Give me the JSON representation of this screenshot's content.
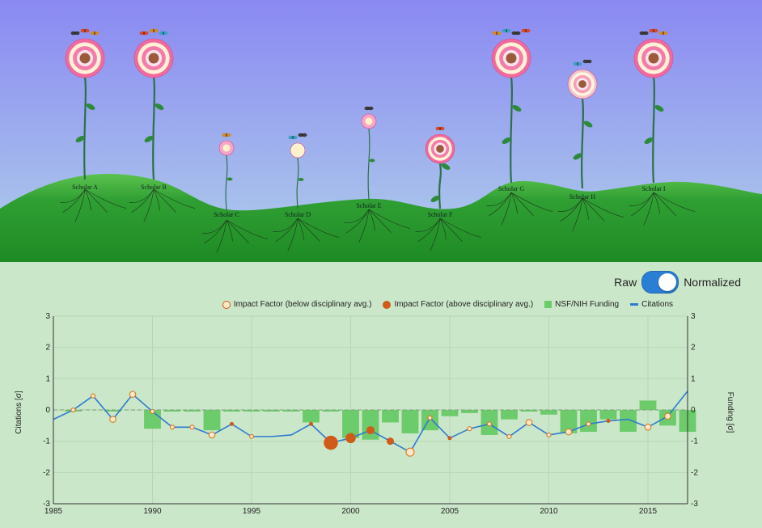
{
  "garden": {
    "scholars": [
      {
        "label": "Scholar A",
        "flower": "large-pink",
        "height": "tall",
        "butterflies": 3
      },
      {
        "label": "Scholar B",
        "flower": "large-pink",
        "height": "tall",
        "butterflies": 3
      },
      {
        "label": "Scholar C",
        "flower": "small-pink",
        "height": "short",
        "butterflies": 1
      },
      {
        "label": "Scholar D",
        "flower": "small-white",
        "height": "short",
        "butterflies": 2
      },
      {
        "label": "Scholar E",
        "flower": "small-pink",
        "height": "medium",
        "butterflies": 1
      },
      {
        "label": "Scholar F",
        "flower": "medium-pink",
        "height": "short",
        "butterflies": 1
      },
      {
        "label": "Scholar G",
        "flower": "large-pink",
        "height": "tall",
        "butterflies": 4
      },
      {
        "label": "Scholar H",
        "flower": "medium-white",
        "height": "tall",
        "butterflies": 2
      },
      {
        "label": "Scholar I",
        "flower": "large-pink",
        "height": "tall",
        "butterflies": 3
      }
    ],
    "colors": {
      "sky_top": "#8c8cf3",
      "sky_bottom": "#a9c3ec",
      "hill": "#2e9e34",
      "soil": "#1f8b25"
    }
  },
  "toggle": {
    "left_label": "Raw",
    "right_label": "Normalized",
    "state": "Normalized"
  },
  "legend": {
    "impact_below": "Impact Factor (below disciplinary avg.)",
    "impact_above": "Impact Factor (above disciplinary avg.)",
    "funding": "NSF/NIH Funding",
    "citations": "Citations"
  },
  "axes": {
    "y_left_label": "Citations [σ]",
    "y_right_label": "Funding [σ]"
  },
  "chart_data": {
    "type": "line",
    "xlim": [
      1985,
      2017
    ],
    "ylim": [
      -3,
      3
    ],
    "x_ticks": [
      1985,
      1990,
      1995,
      2000,
      2005,
      2010,
      2015
    ],
    "y_ticks": [
      -3,
      -2,
      -1,
      0,
      1,
      2,
      3
    ],
    "grid": true,
    "legend_position": "top-right",
    "citations": {
      "name": "Citations",
      "x": [
        1985,
        1986,
        1987,
        1988,
        1989,
        1990,
        1991,
        1992,
        1993,
        1994,
        1995,
        1996,
        1997,
        1998,
        1999,
        2000,
        2001,
        2002,
        2003,
        2004,
        2005,
        2006,
        2007,
        2008,
        2009,
        2010,
        2011,
        2012,
        2013,
        2014,
        2015,
        2016,
        2017
      ],
      "y": [
        -0.3,
        0.0,
        0.45,
        -0.3,
        0.5,
        -0.05,
        -0.55,
        -0.55,
        -0.8,
        -0.45,
        -0.85,
        -0.85,
        -0.8,
        -0.45,
        -1.05,
        -0.9,
        -0.65,
        -1.0,
        -1.35,
        -0.25,
        -0.9,
        -0.6,
        -0.45,
        -0.85,
        -0.4,
        -0.8,
        -0.7,
        -0.45,
        -0.35,
        -0.3,
        -0.55,
        -0.2,
        0.6
      ]
    },
    "impact_factor": [
      {
        "year": 1986,
        "y": 0.0,
        "above_avg": false,
        "size": 1
      },
      {
        "year": 1987,
        "y": 0.45,
        "above_avg": false,
        "size": 1
      },
      {
        "year": 1988,
        "y": -0.3,
        "above_avg": false,
        "size": 1.5
      },
      {
        "year": 1989,
        "y": 0.5,
        "above_avg": false,
        "size": 1.5
      },
      {
        "year": 1990,
        "y": -0.05,
        "above_avg": false,
        "size": 1
      },
      {
        "year": 1991,
        "y": -0.55,
        "above_avg": false,
        "size": 1
      },
      {
        "year": 1992,
        "y": -0.55,
        "above_avg": false,
        "size": 1
      },
      {
        "year": 1993,
        "y": -0.8,
        "above_avg": false,
        "size": 1.5
      },
      {
        "year": 1994,
        "y": -0.45,
        "above_avg": true,
        "size": 1
      },
      {
        "year": 1995,
        "y": -0.85,
        "above_avg": false,
        "size": 1
      },
      {
        "year": 1998,
        "y": -0.45,
        "above_avg": true,
        "size": 1
      },
      {
        "year": 1999,
        "y": -1.05,
        "above_avg": true,
        "size": 3.5
      },
      {
        "year": 2000,
        "y": -0.9,
        "above_avg": true,
        "size": 2.5
      },
      {
        "year": 2001,
        "y": -0.65,
        "above_avg": true,
        "size": 2
      },
      {
        "year": 2002,
        "y": -1.0,
        "above_avg": true,
        "size": 1.8
      },
      {
        "year": 2003,
        "y": -1.35,
        "above_avg": false,
        "size": 2
      },
      {
        "year": 2004,
        "y": -0.25,
        "above_avg": false,
        "size": 1
      },
      {
        "year": 2005,
        "y": -0.9,
        "above_avg": true,
        "size": 1
      },
      {
        "year": 2006,
        "y": -0.6,
        "above_avg": false,
        "size": 1
      },
      {
        "year": 2007,
        "y": -0.45,
        "above_avg": false,
        "size": 1
      },
      {
        "year": 2008,
        "y": -0.85,
        "above_avg": false,
        "size": 1
      },
      {
        "year": 2009,
        "y": -0.4,
        "above_avg": false,
        "size": 1.5
      },
      {
        "year": 2010,
        "y": -0.8,
        "above_avg": false,
        "size": 1
      },
      {
        "year": 2011,
        "y": -0.7,
        "above_avg": false,
        "size": 1.5
      },
      {
        "year": 2012,
        "y": -0.45,
        "above_avg": false,
        "size": 1
      },
      {
        "year": 2013,
        "y": -0.35,
        "above_avg": true,
        "size": 1
      },
      {
        "year": 2015,
        "y": -0.55,
        "above_avg": false,
        "size": 1.5
      },
      {
        "year": 2016,
        "y": -0.2,
        "above_avg": false,
        "size": 1.5
      }
    ],
    "funding": {
      "name": "NSF/NIH Funding",
      "x": [
        1986,
        1987,
        1988,
        1989,
        1990,
        1991,
        1992,
        1993,
        1994,
        1995,
        1996,
        1997,
        1998,
        1999,
        2000,
        2001,
        2002,
        2003,
        2004,
        2005,
        2006,
        2007,
        2008,
        2009,
        2010,
        2011,
        2012,
        2013,
        2014,
        2015,
        2016,
        2017
      ],
      "y": [
        -0.05,
        0,
        -0.05,
        0,
        -0.6,
        -0.05,
        -0.05,
        -0.65,
        -0.05,
        -0.05,
        -0.05,
        -0.05,
        -0.4,
        -0.05,
        -0.9,
        -0.95,
        -0.4,
        -0.75,
        -0.65,
        -0.2,
        -0.1,
        -0.8,
        -0.3,
        -0.05,
        -0.15,
        -0.75,
        -0.7,
        -0.3,
        -0.7,
        0.3,
        -0.5,
        -0.7
      ]
    }
  }
}
